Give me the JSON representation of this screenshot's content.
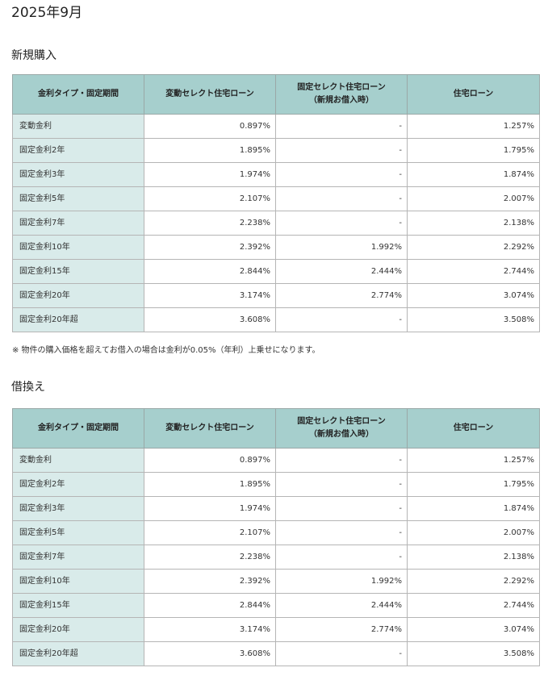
{
  "page_title": "2025年9月",
  "columns": {
    "type": "金利タイプ・固定期間",
    "variable_select": "変動セレクト住宅ローン",
    "fixed_select_line1": "固定セレクト住宅ローン",
    "fixed_select_line2": "（新規お借入時）",
    "housing_loan": "住宅ローン"
  },
  "sections": [
    {
      "title": "新規購入",
      "rows": [
        {
          "label": "変動金利",
          "variable_select": "0.897%",
          "fixed_select": "-",
          "housing_loan": "1.257%"
        },
        {
          "label": "固定金利2年",
          "variable_select": "1.895%",
          "fixed_select": "-",
          "housing_loan": "1.795%"
        },
        {
          "label": "固定金利3年",
          "variable_select": "1.974%",
          "fixed_select": "-",
          "housing_loan": "1.874%"
        },
        {
          "label": "固定金利5年",
          "variable_select": "2.107%",
          "fixed_select": "-",
          "housing_loan": "2.007%"
        },
        {
          "label": "固定金利7年",
          "variable_select": "2.238%",
          "fixed_select": "-",
          "housing_loan": "2.138%"
        },
        {
          "label": "固定金利10年",
          "variable_select": "2.392%",
          "fixed_select": "1.992%",
          "housing_loan": "2.292%"
        },
        {
          "label": "固定金利15年",
          "variable_select": "2.844%",
          "fixed_select": "2.444%",
          "housing_loan": "2.744%"
        },
        {
          "label": "固定金利20年",
          "variable_select": "3.174%",
          "fixed_select": "2.774%",
          "housing_loan": "3.074%"
        },
        {
          "label": "固定金利20年超",
          "variable_select": "3.608%",
          "fixed_select": "-",
          "housing_loan": "3.508%"
        }
      ],
      "note": "※ 物件の購入価格を超えてお借入の場合は金利が0.05%（年利）上乗せになります。"
    },
    {
      "title": "借換え",
      "rows": [
        {
          "label": "変動金利",
          "variable_select": "0.897%",
          "fixed_select": "-",
          "housing_loan": "1.257%"
        },
        {
          "label": "固定金利2年",
          "variable_select": "1.895%",
          "fixed_select": "-",
          "housing_loan": "1.795%"
        },
        {
          "label": "固定金利3年",
          "variable_select": "1.974%",
          "fixed_select": "-",
          "housing_loan": "1.874%"
        },
        {
          "label": "固定金利5年",
          "variable_select": "2.107%",
          "fixed_select": "-",
          "housing_loan": "2.007%"
        },
        {
          "label": "固定金利7年",
          "variable_select": "2.238%",
          "fixed_select": "-",
          "housing_loan": "2.138%"
        },
        {
          "label": "固定金利10年",
          "variable_select": "2.392%",
          "fixed_select": "1.992%",
          "housing_loan": "2.292%"
        },
        {
          "label": "固定金利15年",
          "variable_select": "2.844%",
          "fixed_select": "2.444%",
          "housing_loan": "2.744%"
        },
        {
          "label": "固定金利20年",
          "variable_select": "3.174%",
          "fixed_select": "2.774%",
          "housing_loan": "3.074%"
        },
        {
          "label": "固定金利20年超",
          "variable_select": "3.608%",
          "fixed_select": "-",
          "housing_loan": "3.508%"
        }
      ]
    }
  ]
}
